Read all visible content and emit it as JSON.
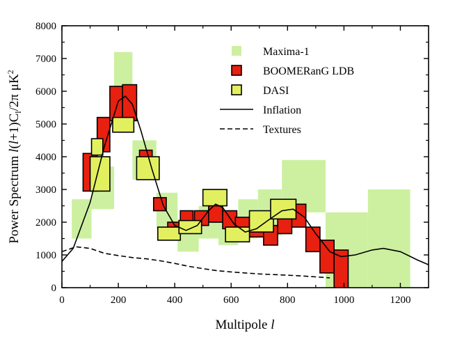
{
  "chart_data": {
    "type": "scatter",
    "title": "",
    "xlabel": "Multipole l",
    "ylabel": "Power Spectrum l(l+1)C_l/2π μK²",
    "xlim": [
      0,
      1300
    ],
    "ylim": [
      0,
      8000
    ],
    "x_ticks": [
      "0",
      "200",
      "400",
      "600",
      "800",
      "1000",
      "1200"
    ],
    "y_ticks": [
      "0",
      "1000",
      "2000",
      "3000",
      "4000",
      "5000",
      "6000",
      "7000",
      "8000"
    ],
    "x_tick_values": [
      0,
      200,
      400,
      600,
      800,
      1000,
      1200
    ],
    "y_tick_values": [
      0,
      1000,
      2000,
      3000,
      4000,
      5000,
      6000,
      7000,
      8000
    ],
    "legend": {
      "position": "top-right",
      "entries": [
        {
          "label": "Maxima-1",
          "kind": "square",
          "color": "#ccf0a0"
        },
        {
          "label": "BOOMERanG LDB",
          "kind": "square",
          "color": "#e82010"
        },
        {
          "label": "DASI",
          "kind": "square",
          "color": "#e2f060"
        },
        {
          "label": "Inflation",
          "kind": "line",
          "dash": "solid"
        },
        {
          "label": "Textures",
          "kind": "line",
          "dash": "dashed"
        }
      ]
    },
    "series": [
      {
        "name": "Maxima-1",
        "style": "box",
        "fill": "#ccf0a0",
        "stroke": "none",
        "boxes": [
          {
            "x0": 35,
            "x1": 105,
            "y0": 1500,
            "y1": 2700
          },
          {
            "x0": 105,
            "x1": 185,
            "y0": 2400,
            "y1": 3700
          },
          {
            "x0": 185,
            "x1": 250,
            "y0": 5900,
            "y1": 7200
          },
          {
            "x0": 250,
            "x1": 335,
            "y0": 3300,
            "y1": 4500
          },
          {
            "x0": 335,
            "x1": 410,
            "y0": 1800,
            "y1": 2900
          },
          {
            "x0": 410,
            "x1": 485,
            "y0": 1100,
            "y1": 2100
          },
          {
            "x0": 485,
            "x1": 555,
            "y0": 1500,
            "y1": 2500
          },
          {
            "x0": 555,
            "x1": 625,
            "y0": 1300,
            "y1": 2300
          },
          {
            "x0": 625,
            "x1": 695,
            "y0": 1500,
            "y1": 2700
          },
          {
            "x0": 695,
            "x1": 780,
            "y0": 1600,
            "y1": 3000
          },
          {
            "x0": 780,
            "x1": 935,
            "y0": 2300,
            "y1": 3900
          },
          {
            "x0": 935,
            "x1": 1085,
            "y0": 0,
            "y1": 2300
          },
          {
            "x0": 1085,
            "x1": 1235,
            "y0": 0,
            "y1": 3000
          }
        ]
      },
      {
        "name": "BOOMERanG LDB",
        "style": "box",
        "fill": "#e82010",
        "stroke": "#000000",
        "boxes": [
          {
            "x0": 75,
            "x1": 125,
            "y0": 2950,
            "y1": 4100
          },
          {
            "x0": 125,
            "x1": 170,
            "y0": 4150,
            "y1": 5200
          },
          {
            "x0": 170,
            "x1": 215,
            "y0": 5100,
            "y1": 6150
          },
          {
            "x0": 215,
            "x1": 265,
            "y0": 5100,
            "y1": 6200
          },
          {
            "x0": 275,
            "x1": 320,
            "y0": 3600,
            "y1": 4200
          },
          {
            "x0": 325,
            "x1": 370,
            "y0": 2350,
            "y1": 2750
          },
          {
            "x0": 375,
            "x1": 420,
            "y0": 1700,
            "y1": 2000
          },
          {
            "x0": 420,
            "x1": 465,
            "y0": 1800,
            "y1": 2350
          },
          {
            "x0": 470,
            "x1": 520,
            "y0": 1900,
            "y1": 2350
          },
          {
            "x0": 520,
            "x1": 570,
            "y0": 2000,
            "y1": 2650
          },
          {
            "x0": 570,
            "x1": 620,
            "y0": 1800,
            "y1": 2350
          },
          {
            "x0": 615,
            "x1": 665,
            "y0": 1700,
            "y1": 2150
          },
          {
            "x0": 665,
            "x1": 715,
            "y0": 1550,
            "y1": 2200
          },
          {
            "x0": 715,
            "x1": 765,
            "y0": 1300,
            "y1": 1900
          },
          {
            "x0": 765,
            "x1": 815,
            "y0": 1650,
            "y1": 2450
          },
          {
            "x0": 815,
            "x1": 865,
            "y0": 1850,
            "y1": 2550
          },
          {
            "x0": 865,
            "x1": 915,
            "y0": 1100,
            "y1": 1850
          },
          {
            "x0": 915,
            "x1": 965,
            "y0": 450,
            "y1": 1450
          },
          {
            "x0": 965,
            "x1": 1015,
            "y0": 0,
            "y1": 1150
          }
        ]
      },
      {
        "name": "DASI",
        "style": "box",
        "fill": "#e2f060",
        "stroke": "#000000",
        "boxes": [
          {
            "x0": 100,
            "x1": 170,
            "y0": 2950,
            "y1": 4000
          },
          {
            "x0": 105,
            "x1": 145,
            "y0": 4050,
            "y1": 4550
          },
          {
            "x0": 180,
            "x1": 255,
            "y0": 4750,
            "y1": 5200
          },
          {
            "x0": 265,
            "x1": 345,
            "y0": 3300,
            "y1": 4000
          },
          {
            "x0": 340,
            "x1": 420,
            "y0": 1450,
            "y1": 1850
          },
          {
            "x0": 415,
            "x1": 495,
            "y0": 1650,
            "y1": 2050
          },
          {
            "x0": 500,
            "x1": 585,
            "y0": 2500,
            "y1": 3000
          },
          {
            "x0": 580,
            "x1": 665,
            "y0": 1400,
            "y1": 1850
          },
          {
            "x0": 665,
            "x1": 750,
            "y0": 1700,
            "y1": 2350
          },
          {
            "x0": 740,
            "x1": 830,
            "y0": 2100,
            "y1": 2700
          }
        ]
      },
      {
        "name": "Inflation",
        "style": "line",
        "dash": "solid",
        "points": [
          [
            0,
            800
          ],
          [
            40,
            1200
          ],
          [
            100,
            2600
          ],
          [
            150,
            4300
          ],
          [
            200,
            5700
          ],
          [
            225,
            5850
          ],
          [
            250,
            5600
          ],
          [
            280,
            4800
          ],
          [
            320,
            3600
          ],
          [
            360,
            2500
          ],
          [
            400,
            1900
          ],
          [
            440,
            1750
          ],
          [
            480,
            1900
          ],
          [
            520,
            2350
          ],
          [
            545,
            2550
          ],
          [
            570,
            2450
          ],
          [
            610,
            1950
          ],
          [
            650,
            1700
          ],
          [
            690,
            1800
          ],
          [
            730,
            2050
          ],
          [
            780,
            2350
          ],
          [
            820,
            2400
          ],
          [
            860,
            2150
          ],
          [
            900,
            1650
          ],
          [
            950,
            1100
          ],
          [
            990,
            950
          ],
          [
            1040,
            1000
          ],
          [
            1100,
            1150
          ],
          [
            1140,
            1200
          ],
          [
            1200,
            1100
          ],
          [
            1260,
            850
          ],
          [
            1300,
            700
          ]
        ]
      },
      {
        "name": "Textures",
        "style": "line",
        "dash": "dashed",
        "points": [
          [
            0,
            1100
          ],
          [
            50,
            1250
          ],
          [
            100,
            1200
          ],
          [
            150,
            1050
          ],
          [
            200,
            980
          ],
          [
            250,
            920
          ],
          [
            300,
            880
          ],
          [
            350,
            820
          ],
          [
            400,
            740
          ],
          [
            450,
            650
          ],
          [
            500,
            580
          ],
          [
            550,
            520
          ],
          [
            600,
            480
          ],
          [
            650,
            450
          ],
          [
            700,
            420
          ],
          [
            750,
            400
          ],
          [
            800,
            380
          ],
          [
            850,
            360
          ],
          [
            900,
            330
          ],
          [
            950,
            300
          ]
        ]
      }
    ]
  }
}
